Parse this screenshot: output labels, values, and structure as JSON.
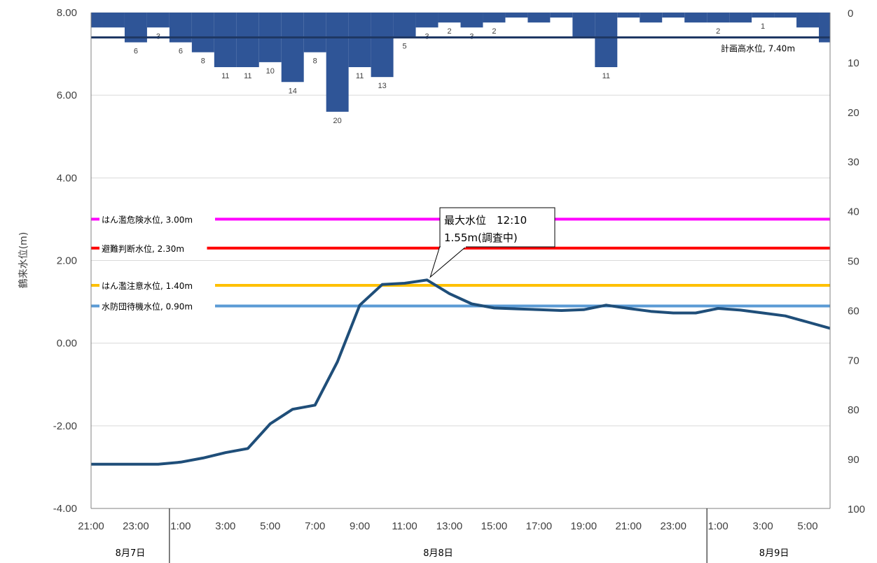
{
  "chart_data": {
    "type": "line",
    "ylabel": "鶴来水位(m)",
    "y_left_range": [
      -4,
      8
    ],
    "y_left_ticks": [
      "-4.00",
      "-2.00",
      "0.00",
      "2.00",
      "4.00",
      "6.00",
      "8.00"
    ],
    "y_right_range": [
      0,
      100
    ],
    "y_right_inverted": true,
    "y_right_ticks": [
      "0",
      "10",
      "20",
      "30",
      "40",
      "50",
      "60",
      "70",
      "80",
      "90",
      "100"
    ],
    "grid": true,
    "x_ticks": [
      "21:00",
      "23:00",
      "1:00",
      "3:00",
      "5:00",
      "7:00",
      "9:00",
      "11:00",
      "13:00",
      "15:00",
      "17:00",
      "19:00",
      "21:00",
      "23:00",
      "1:00",
      "3:00",
      "5:00"
    ],
    "date_labels": [
      "8月7日",
      "8月8日",
      "8月9日"
    ],
    "water_level": {
      "color": "#1F4E79",
      "times": [
        "21:00",
        "22:00",
        "23:00",
        "0:00",
        "1:00",
        "2:00",
        "3:00",
        "4:00",
        "5:00",
        "6:00",
        "7:00",
        "8:00",
        "9:00",
        "10:00",
        "11:00",
        "12:00",
        "13:00",
        "14:00",
        "15:00",
        "16:00",
        "17:00",
        "18:00",
        "19:00",
        "20:00",
        "21:00",
        "22:00",
        "23:00",
        "0:00",
        "1:00",
        "2:00",
        "3:00",
        "4:00",
        "5:00",
        "6:00"
      ],
      "values": [
        -2.93,
        -2.93,
        -2.93,
        -2.93,
        -2.88,
        -2.78,
        -2.65,
        -2.55,
        -1.95,
        -1.6,
        -1.5,
        -0.45,
        0.92,
        1.42,
        1.45,
        1.53,
        1.2,
        0.95,
        0.85,
        0.83,
        0.81,
        0.79,
        0.81,
        0.92,
        0.84,
        0.77,
        0.73,
        0.73,
        0.84,
        0.8,
        0.73,
        0.66,
        0.51,
        0.36
      ]
    },
    "rainfall": {
      "color": "#2F5597",
      "unit": "mm",
      "values": [
        3,
        3,
        6,
        3,
        6,
        8,
        11,
        11,
        10,
        14,
        8,
        20,
        11,
        13,
        5,
        3,
        2,
        3,
        2,
        1,
        2,
        1,
        5,
        11,
        1,
        2,
        1,
        2,
        2,
        2,
        1,
        1,
        3,
        6,
        1
      ],
      "labels": [
        "",
        "",
        "6",
        "3",
        "6",
        "8",
        "11",
        "11",
        "10",
        "14",
        "8",
        "20",
        "11",
        "13",
        "5",
        "3",
        "2",
        "3",
        "2",
        "",
        "",
        "",
        "",
        "11",
        "",
        "",
        "",
        "",
        "2",
        "",
        "1",
        "",
        "",
        "",
        ""
      ]
    },
    "reference_lines": [
      {
        "label": "計画高水位, 7.40m",
        "value": 7.4,
        "color": "#1F3864"
      },
      {
        "label": "はん濫危険水位, 3.00m",
        "value": 3.0,
        "color": "#FF00FF"
      },
      {
        "label": "避難判断水位, 2.30m",
        "value": 2.3,
        "color": "#FF0000"
      },
      {
        "label": "はん濫注意水位, 1.40m",
        "value": 1.4,
        "color": "#FFC000"
      },
      {
        "label": "水防団待機水位, 0.90m",
        "value": 0.9,
        "color": "#5B9BD5"
      }
    ],
    "annotation": {
      "line1": "最大水位　12:10",
      "line2": "1.55m(調査中)"
    }
  }
}
